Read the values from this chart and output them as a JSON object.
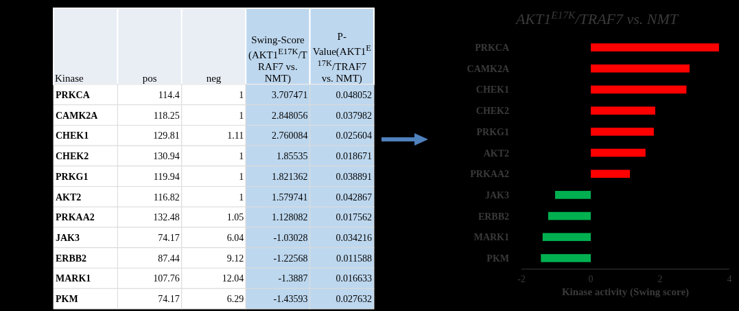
{
  "chart_data": [
    {
      "type": "heatmap",
      "data_labels": true,
      "ylabel": "Kinase",
      "categories": [
        "pos",
        "neg",
        "Swing-Score (AKT1$^{E17K}$/TRAF7 vs. NMT)",
        "P-Value(AKT1$^{E17K}$/TRAF7 vs. NMT)"
      ],
      "y_categories": [
        "PRKCA",
        "CAMK2A",
        "CHEK1",
        "CHEK2",
        "PRKG1",
        "AKT2",
        "PRKAA2",
        "JAK3",
        "ERBB2",
        "MARK1",
        "PKM"
      ],
      "cells": [
        [
          114.4,
          1,
          3.707471,
          0.048052
        ],
        [
          118.25,
          1,
          2.848056,
          0.037982
        ],
        [
          129.81,
          1.11,
          2.760084,
          0.025604
        ],
        [
          130.94,
          1,
          1.85535,
          0.018671
        ],
        [
          119.94,
          1,
          1.821362,
          0.038891
        ],
        [
          116.82,
          1,
          1.579741,
          0.042867
        ],
        [
          132.48,
          1.05,
          1.128082,
          0.017562
        ],
        [
          74.17,
          6.04,
          -1.03028,
          0.034216
        ],
        [
          87.44,
          9.12,
          -1.22568,
          0.011588
        ],
        [
          107.76,
          12.04,
          -1.3887,
          0.016633
        ],
        [
          74.17,
          6.29,
          -1.43593,
          0.027632
        ]
      ]
    },
    {
      "type": "bar",
      "orientation": "horizontal",
      "title": "AKT1$^{E17K}$/TRAF7 vs.  NMT",
      "xlabel": "Kinase activity (Swing score)",
      "categories": [
        "PRKCA",
        "CAMK2A",
        "CHEK1",
        "CHEK2",
        "PRKG1",
        "AKT2",
        "PRKAA2",
        "JAK3",
        "ERBB2",
        "MARK1",
        "PKM"
      ],
      "values": [
        3.7,
        2.85,
        2.76,
        1.86,
        1.82,
        1.58,
        1.13,
        -1.03,
        -1.23,
        -1.39,
        -1.44
      ],
      "colors": [
        "#ff0000",
        "#ff0000",
        "#ff0000",
        "#ff0000",
        "#ff0000",
        "#ff0000",
        "#ff0000",
        "#00b050",
        "#00b050",
        "#00b050",
        "#00b050"
      ],
      "xlim": [
        -2,
        4
      ],
      "xticks": [
        -2,
        0,
        2,
        4
      ]
    }
  ]
}
